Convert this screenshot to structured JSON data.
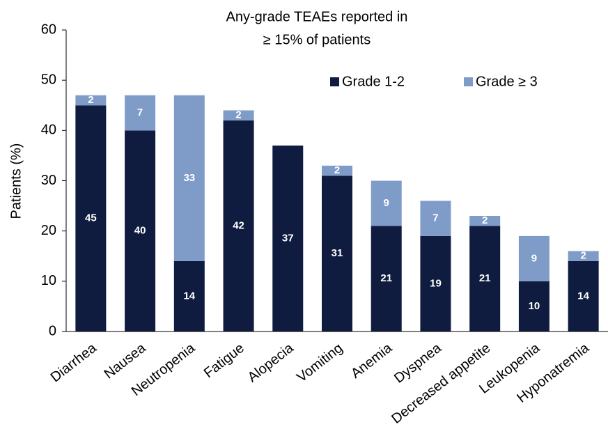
{
  "chart_data": {
    "type": "stacked_bar",
    "title": [
      "Any-grade TEAEs reported in",
      "≥ 15% of patients"
    ],
    "y_label": "Patients (%)",
    "categories": [
      "Diarrhea",
      "Nausea",
      "Neutropenia",
      "Fatigue",
      "Alopecia",
      "Vomiting",
      "Anemia",
      "Dyspnea",
      "Decreased appetite",
      "Leukopenia",
      "Hyponatremia"
    ],
    "series": [
      {
        "name": "Grade 1-2",
        "color": "#0f1c3f",
        "values": [
          45,
          40,
          14,
          42,
          37,
          31,
          21,
          19,
          21,
          10,
          14
        ]
      },
      {
        "name": "Grade ≥ 3",
        "color": "#7f9cc9",
        "values": [
          2,
          7,
          33,
          2,
          0,
          2,
          9,
          7,
          2,
          9,
          2
        ]
      }
    ],
    "ylim": [
      0,
      60
    ],
    "yticks": [
      0,
      10,
      20,
      30,
      40,
      50,
      60
    ],
    "grid": false
  }
}
